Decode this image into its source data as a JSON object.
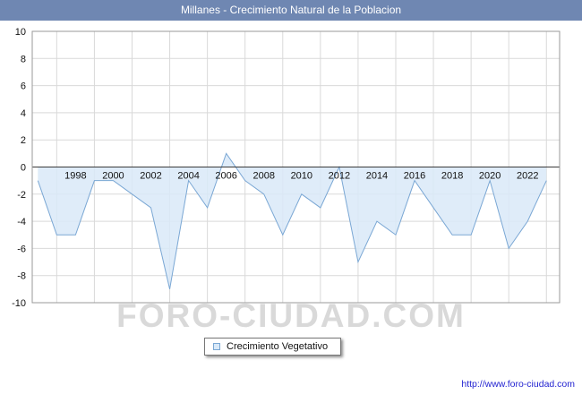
{
  "header": {
    "title": "Millanes - Crecimiento Natural de la Poblacion",
    "bg_color": "#6f87b2",
    "text_color": "#ffffff"
  },
  "chart_data": {
    "type": "area",
    "title": "Millanes - Crecimiento Natural de la Poblacion",
    "xlabel": "",
    "ylabel": "",
    "x": [
      1996,
      1997,
      1998,
      1999,
      2000,
      2001,
      2002,
      2003,
      2004,
      2005,
      2006,
      2007,
      2008,
      2009,
      2010,
      2011,
      2012,
      2013,
      2014,
      2015,
      2016,
      2017,
      2018,
      2019,
      2020,
      2021,
      2022,
      2023
    ],
    "values": [
      -1,
      -5,
      -5,
      -1,
      -1,
      -2,
      -3,
      -9,
      -1,
      -3,
      1,
      -1,
      -2,
      -5,
      -2,
      -3,
      0,
      -7,
      -4,
      -5,
      -1,
      -3,
      -5,
      -5,
      -1,
      -6,
      -4,
      -1
    ],
    "series_name": "Crecimiento Vegetativo",
    "baseline": 0,
    "ylim": [
      -10,
      10
    ],
    "ytick_step": 2,
    "yticks": [
      10,
      8,
      6,
      4,
      2,
      0,
      -2,
      -4,
      -6,
      -8,
      -10
    ],
    "xticks": [
      1998,
      2000,
      2002,
      2004,
      2006,
      2008,
      2010,
      2012,
      2014,
      2016,
      2018,
      2020,
      2022
    ],
    "grid": true,
    "legend_position": "bottom-center",
    "colors": {
      "line": "#7aa7d4",
      "fill": "#d9e9f8",
      "grid": "#d9d9d9",
      "axis": "#3a3a3a",
      "border": "#999999",
      "label": "#111111"
    }
  },
  "legend": {
    "label": "Crecimiento Vegetativo"
  },
  "watermark": {
    "text": "FORO-CIUDAD.COM"
  },
  "footer": {
    "url": "http://www.foro-ciudad.com"
  }
}
